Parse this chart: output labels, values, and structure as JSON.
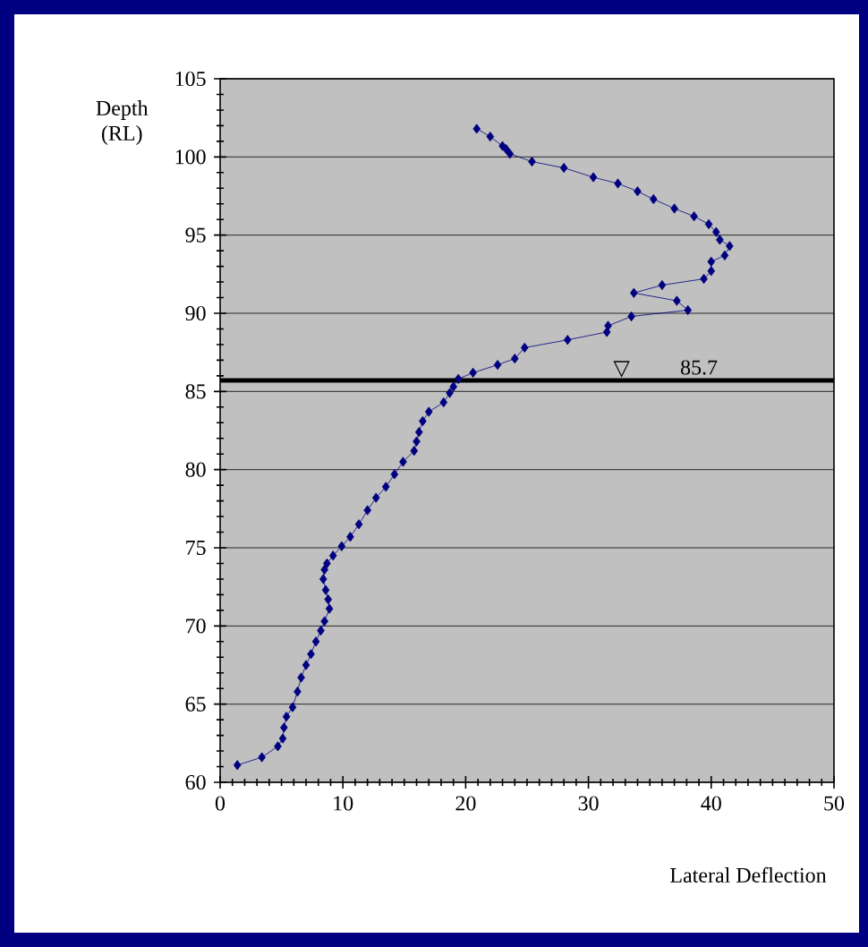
{
  "chart_data": {
    "type": "line",
    "xlabel": "Lateral Deflection",
    "ylabel": "Depth (RL)",
    "xlim": [
      0,
      50
    ],
    "xticks": [
      0,
      10,
      20,
      30,
      40,
      50
    ],
    "ylim": [
      60,
      105
    ],
    "yticks": [
      60,
      65,
      70,
      75,
      80,
      85,
      90,
      95,
      100,
      105
    ],
    "grid": "y",
    "marker": "diamond",
    "series": [
      {
        "color": "#000080",
        "x": [
          20.9,
          22.0,
          23.0,
          23.3,
          23.6,
          25.4,
          28.0,
          30.4,
          32.4,
          34.0,
          35.3,
          37.0,
          38.6,
          39.8,
          40.4,
          40.7,
          41.5,
          41.1,
          40.0,
          40.0,
          39.4,
          36.0,
          33.7,
          37.2,
          38.1,
          33.5,
          31.6,
          31.5,
          28.3,
          24.8,
          24.0,
          22.6,
          20.6,
          19.4,
          19.0,
          18.7,
          18.2,
          17.0,
          16.5,
          16.2,
          16.0,
          15.8,
          14.9,
          14.2,
          13.5,
          12.7,
          12.0,
          11.3,
          10.6,
          9.9,
          9.2,
          8.7,
          8.5,
          8.4,
          8.6,
          8.8,
          8.9,
          8.5,
          8.2,
          7.8,
          7.4,
          7.0,
          6.6,
          6.3,
          5.9,
          5.4,
          5.2,
          5.1,
          4.7,
          3.4,
          1.4
        ],
        "values": [
          101.8,
          101.3,
          100.7,
          100.5,
          100.2,
          99.7,
          99.3,
          98.7,
          98.3,
          97.8,
          97.3,
          96.7,
          96.2,
          95.7,
          95.2,
          94.7,
          94.3,
          93.7,
          93.3,
          92.7,
          92.2,
          91.8,
          91.3,
          90.8,
          90.2,
          89.8,
          89.2,
          88.8,
          88.3,
          87.8,
          87.1,
          86.7,
          86.2,
          85.8,
          85.3,
          84.9,
          84.3,
          83.7,
          83.1,
          82.4,
          81.8,
          81.2,
          80.5,
          79.7,
          78.9,
          78.2,
          77.4,
          76.5,
          75.7,
          75.1,
          74.5,
          74.0,
          73.6,
          73.0,
          72.3,
          71.7,
          71.1,
          70.3,
          69.7,
          69.0,
          68.2,
          67.5,
          66.7,
          65.8,
          64.8,
          64.2,
          63.5,
          62.8,
          62.3,
          61.6,
          61.1
        ]
      }
    ],
    "ref_lines": [
      {
        "axis": "y",
        "value": 85.7,
        "label": "85.7",
        "color": "#000000"
      }
    ],
    "annotations": [
      {
        "text": "▽",
        "x": 32.7,
        "y": 85.7
      }
    ]
  }
}
